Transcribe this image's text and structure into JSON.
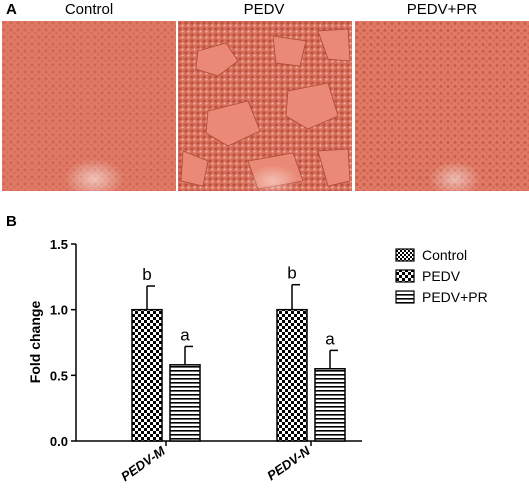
{
  "panel_a": {
    "letter": "A",
    "images": [
      {
        "title": "Control"
      },
      {
        "title": "PEDV"
      },
      {
        "title": "PEDV+PR"
      }
    ]
  },
  "panel_b": {
    "letter": "B"
  },
  "colors": {
    "micrograph_base": "#e07a66",
    "micrograph_cell": "#c8604e",
    "bar_stroke": "#000000"
  },
  "chart_data": {
    "type": "bar",
    "ylabel": "Fold change",
    "xlabel": "",
    "ylim": [
      0,
      1.5
    ],
    "yticks": [
      "0.0",
      "0.5",
      "1.0",
      "1.5"
    ],
    "categories": [
      "PEDV-M",
      "PEDV-N"
    ],
    "series": [
      {
        "name": "Control",
        "values": [
          null,
          null
        ],
        "errors": [
          null,
          null
        ],
        "letters": [
          "",
          ""
        ],
        "pattern": "checker-fine"
      },
      {
        "name": "PEDV",
        "values": [
          1.0,
          1.0
        ],
        "errors": [
          0.18,
          0.19
        ],
        "letters": [
          "b",
          "b"
        ],
        "pattern": "checker"
      },
      {
        "name": "PEDV+PR",
        "values": [
          0.58,
          0.55
        ],
        "errors": [
          0.14,
          0.14
        ],
        "letters": [
          "a",
          "a"
        ],
        "pattern": "horizontal-lines"
      }
    ],
    "legend_position": "right",
    "grid": false
  }
}
